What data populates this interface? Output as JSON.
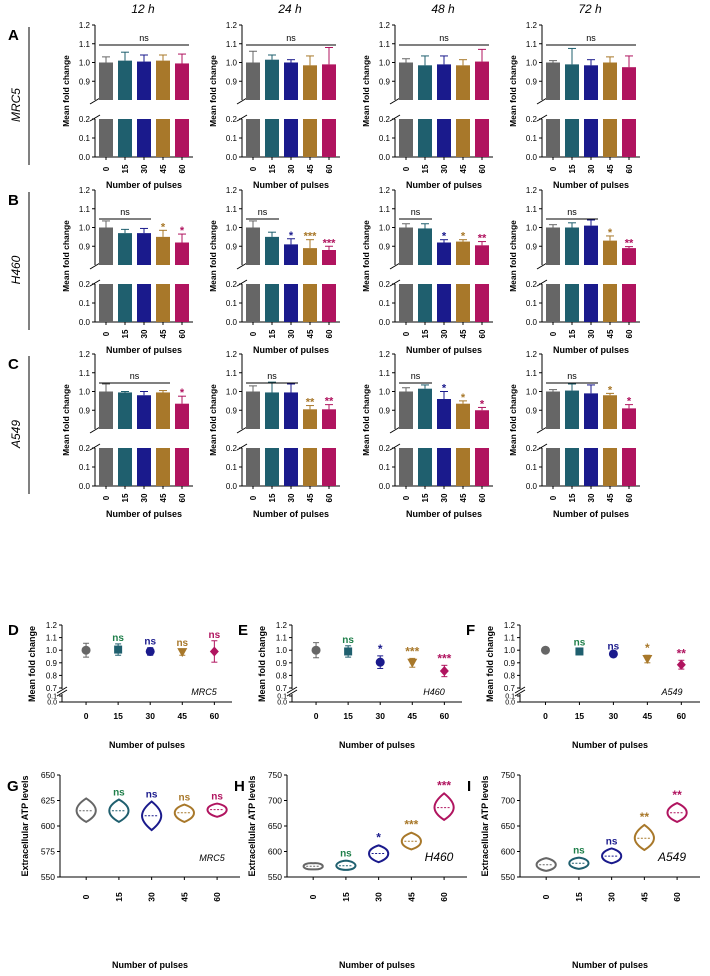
{
  "colors": {
    "p0": "#666666",
    "p15": "#1f5f6e",
    "p30": "#1a1a8c",
    "p45": "#a8782a",
    "p60": "#b0145f",
    "green": "#1f7f4a",
    "axis": "#000000"
  },
  "timepoints": [
    "12 h",
    "24 h",
    "48 h",
    "72 h"
  ],
  "panel_letters": [
    "A",
    "B",
    "C",
    "D",
    "E",
    "F",
    "G",
    "H",
    "I"
  ],
  "row_cells": [
    "MRC5",
    "H460",
    "A549"
  ],
  "chart_data": [
    {
      "type": "bar",
      "panel": "A",
      "cell_line": "MRC5",
      "categories": [
        "0",
        "15",
        "30",
        "45",
        "60"
      ],
      "xlabel": "Number of pulses",
      "ylabel": "Mean fold change",
      "ylim_upper": [
        0.8,
        1.2
      ],
      "ylim_lower": [
        0.0,
        0.2
      ],
      "yticks_upper": [
        "0.9",
        "1.0",
        "1.1",
        "1.2"
      ],
      "yticks_lower": [
        "0.0",
        "0.1",
        "0.2"
      ],
      "series": [
        {
          "time": "12 h",
          "values": [
            1.0,
            1.01,
            1.005,
            1.01,
            0.995
          ],
          "errors": [
            0.03,
            0.045,
            0.035,
            0.03,
            0.05
          ],
          "bracket": "ns",
          "bracket_span": [
            0,
            4
          ],
          "stars": [
            "",
            "",
            "",
            "",
            ""
          ]
        },
        {
          "time": "24 h",
          "values": [
            1.0,
            1.015,
            1.0,
            0.985,
            0.99
          ],
          "errors": [
            0.06,
            0.025,
            0.015,
            0.05,
            0.09
          ],
          "bracket": "ns",
          "bracket_span": [
            0,
            4
          ],
          "stars": [
            "",
            "",
            "",
            "",
            ""
          ]
        },
        {
          "time": "48 h",
          "values": [
            1.0,
            0.985,
            0.99,
            0.985,
            1.005
          ],
          "errors": [
            0.02,
            0.05,
            0.045,
            0.03,
            0.065
          ],
          "bracket": "ns",
          "bracket_span": [
            0,
            4
          ],
          "stars": [
            "",
            "",
            "",
            "",
            ""
          ]
        },
        {
          "time": "72 h",
          "values": [
            1.0,
            0.99,
            0.985,
            1.0,
            0.975
          ],
          "errors": [
            0.01,
            0.085,
            0.03,
            0.03,
            0.06
          ],
          "bracket": "ns",
          "bracket_span": [
            0,
            4
          ],
          "stars": [
            "",
            "",
            "",
            "",
            ""
          ]
        }
      ]
    },
    {
      "type": "bar",
      "panel": "B",
      "cell_line": "H460",
      "categories": [
        "0",
        "15",
        "30",
        "45",
        "60"
      ],
      "xlabel": "Number of pulses",
      "ylabel": "Mean fold change",
      "ylim_upper": [
        0.8,
        1.2
      ],
      "ylim_lower": [
        0.0,
        0.2
      ],
      "yticks_upper": [
        "0.9",
        "1.0",
        "1.1",
        "1.2"
      ],
      "yticks_lower": [
        "0.0",
        "0.1",
        "0.2"
      ],
      "series": [
        {
          "time": "12 h",
          "values": [
            1.0,
            0.97,
            0.97,
            0.95,
            0.92
          ],
          "errors": [
            0.035,
            0.02,
            0.025,
            0.035,
            0.045
          ],
          "bracket": "ns",
          "bracket_span": [
            0,
            2
          ],
          "stars": [
            "",
            "",
            "",
            "*",
            "*"
          ]
        },
        {
          "time": "24 h",
          "values": [
            1.0,
            0.95,
            0.91,
            0.89,
            0.88
          ],
          "errors": [
            0.035,
            0.025,
            0.03,
            0.045,
            0.02
          ],
          "bracket": "ns",
          "bracket_span": [
            0,
            1
          ],
          "stars": [
            "",
            "",
            "*",
            "***",
            "***"
          ]
        },
        {
          "time": "48 h",
          "values": [
            1.0,
            0.995,
            0.92,
            0.925,
            0.905
          ],
          "errors": [
            0.02,
            0.025,
            0.015,
            0.01,
            0.02
          ],
          "bracket": "ns",
          "bracket_span": [
            0,
            1
          ],
          "stars": [
            "",
            "",
            "*",
            "*",
            "**"
          ]
        },
        {
          "time": "72 h",
          "values": [
            1.0,
            1.0,
            1.01,
            0.93,
            0.89
          ],
          "errors": [
            0.015,
            0.025,
            0.03,
            0.025,
            0.008
          ],
          "bracket": "ns",
          "bracket_span": [
            0,
            2
          ],
          "stars": [
            "",
            "",
            "",
            "*",
            "**"
          ]
        }
      ]
    },
    {
      "type": "bar",
      "panel": "C",
      "cell_line": "A549",
      "categories": [
        "0",
        "15",
        "30",
        "45",
        "60"
      ],
      "xlabel": "Number of pulses",
      "ylabel": "Mean fold change",
      "ylim_upper": [
        0.8,
        1.2
      ],
      "ylim_lower": [
        0.0,
        0.2
      ],
      "yticks_upper": [
        "0.9",
        "1.0",
        "1.1",
        "1.2"
      ],
      "yticks_lower": [
        "0.0",
        "0.1",
        "0.2"
      ],
      "series": [
        {
          "time": "12 h",
          "values": [
            1.0,
            0.995,
            0.98,
            0.995,
            0.935
          ],
          "errors": [
            0.04,
            0.005,
            0.02,
            0.01,
            0.04
          ],
          "bracket": "ns",
          "bracket_span": [
            0,
            3
          ],
          "stars": [
            "",
            "",
            "",
            "",
            "*"
          ]
        },
        {
          "time": "24 h",
          "values": [
            1.0,
            0.995,
            0.995,
            0.905,
            0.905
          ],
          "errors": [
            0.03,
            0.055,
            0.045,
            0.02,
            0.025
          ],
          "bracket": "ns",
          "bracket_span": [
            0,
            2
          ],
          "stars": [
            "",
            "",
            "",
            "**",
            "**"
          ]
        },
        {
          "time": "48 h",
          "values": [
            1.0,
            1.015,
            0.96,
            0.935,
            0.9
          ],
          "errors": [
            0.02,
            0.02,
            0.04,
            0.015,
            0.015
          ],
          "bracket": "ns",
          "bracket_span": [
            0,
            1
          ],
          "stars": [
            "",
            "",
            "*",
            "*",
            "*"
          ]
        },
        {
          "time": "72 h",
          "values": [
            1.0,
            1.005,
            0.99,
            0.98,
            0.91
          ],
          "errors": [
            0.01,
            0.035,
            0.045,
            0.01,
            0.02
          ],
          "bracket": "ns",
          "bracket_span": [
            0,
            2
          ],
          "stars": [
            "",
            "",
            "",
            "*",
            "*"
          ]
        }
      ]
    },
    {
      "type": "scatter",
      "panel": "D",
      "cell_line": "MRC5",
      "categories": [
        "0",
        "15",
        "30",
        "45",
        "60"
      ],
      "xlabel": "Number of pulses",
      "ylabel": "Mean fold change",
      "ylim_upper": [
        0.7,
        1.2
      ],
      "ylim_lower": [
        0.0,
        0.1
      ],
      "yticks_upper": [
        "0.7",
        "0.8",
        "0.9",
        "1.0",
        "1.1",
        "1.2"
      ],
      "yticks_lower": [
        "0.0",
        "0.1"
      ],
      "markers": [
        "circle",
        "square",
        "circle",
        "triangle-down",
        "diamond"
      ],
      "values": [
        1.0,
        1.005,
        0.99,
        0.985,
        0.99
      ],
      "errors": [
        0.055,
        0.045,
        0.03,
        0.025,
        0.085
      ],
      "labels": [
        "",
        "ns",
        "ns",
        "ns",
        "ns"
      ]
    },
    {
      "type": "scatter",
      "panel": "E",
      "cell_line": "H460",
      "categories": [
        "0",
        "15",
        "30",
        "45",
        "60"
      ],
      "xlabel": "Number of pulses",
      "ylabel": "Mean fold change",
      "ylim_upper": [
        0.7,
        1.2
      ],
      "ylim_lower": [
        0.0,
        0.1
      ],
      "yticks_upper": [
        "0.7",
        "0.8",
        "0.9",
        "1.0",
        "1.1",
        "1.2"
      ],
      "yticks_lower": [
        "0.0",
        "0.1"
      ],
      "markers": [
        "circle",
        "square",
        "circle",
        "triangle-down",
        "diamond"
      ],
      "values": [
        1.0,
        0.99,
        0.905,
        0.9,
        0.835
      ],
      "errors": [
        0.06,
        0.045,
        0.05,
        0.035,
        0.045
      ],
      "labels": [
        "",
        "ns",
        "*",
        "***",
        "***"
      ]
    },
    {
      "type": "scatter",
      "panel": "F",
      "cell_line": "A549",
      "categories": [
        "0",
        "15",
        "30",
        "45",
        "60"
      ],
      "xlabel": "Number of pulses",
      "ylabel": "Mean fold change",
      "ylim_upper": [
        0.7,
        1.2
      ],
      "ylim_lower": [
        0.0,
        0.1
      ],
      "yticks_upper": [
        "0.7",
        "0.8",
        "0.9",
        "1.0",
        "1.1",
        "1.2"
      ],
      "yticks_lower": [
        "0.0",
        "0.1"
      ],
      "markers": [
        "circle",
        "square",
        "circle",
        "triangle-down",
        "diamond"
      ],
      "values": [
        1.0,
        0.99,
        0.97,
        0.93,
        0.885
      ],
      "errors": [
        0.02,
        0.025,
        0.01,
        0.03,
        0.035
      ],
      "labels": [
        "",
        "ns",
        "ns",
        "*",
        "**"
      ]
    },
    {
      "type": "violin",
      "panel": "G",
      "cell_line": "MRC5",
      "categories": [
        "0",
        "15",
        "30",
        "45",
        "60"
      ],
      "xlabel": "Number of pulses",
      "ylabel": "Extracellular ATP levels",
      "ylim": [
        550,
        650
      ],
      "yticks": [
        "550",
        "575",
        "600",
        "625",
        "650"
      ],
      "medians": [
        615,
        615,
        610,
        613,
        616
      ],
      "ranges": [
        [
          604,
          627
        ],
        [
          604,
          626
        ],
        [
          596,
          624
        ],
        [
          604,
          621
        ],
        [
          609,
          622
        ]
      ],
      "labels": [
        "",
        "ns",
        "ns",
        "ns",
        "ns"
      ]
    },
    {
      "type": "violin",
      "panel": "H",
      "cell_line": "H460",
      "categories": [
        "0",
        "15",
        "30",
        "45",
        "60"
      ],
      "xlabel": "Number of pulses",
      "ylabel": "Extracellular ATP levels",
      "ylim": [
        550,
        750
      ],
      "yticks": [
        "550",
        "600",
        "650",
        "700",
        "750"
      ],
      "medians": [
        571,
        572,
        596,
        620,
        686
      ],
      "ranges": [
        [
          565,
          577
        ],
        [
          564,
          582
        ],
        [
          579,
          612
        ],
        [
          604,
          637
        ],
        [
          662,
          714
        ]
      ],
      "labels": [
        "",
        "ns",
        "*",
        "***",
        "***"
      ]
    },
    {
      "type": "violin",
      "panel": "I",
      "cell_line": "A549",
      "categories": [
        "0",
        "15",
        "30",
        "45",
        "60"
      ],
      "xlabel": "Number of pulses",
      "ylabel": "Extracellular ATP levels",
      "ylim": [
        550,
        750
      ],
      "yticks": [
        "550",
        "600",
        "650",
        "700",
        "750"
      ],
      "medians": [
        574,
        577,
        591,
        626,
        676
      ],
      "ranges": [
        [
          562,
          587
        ],
        [
          566,
          588
        ],
        [
          577,
          606
        ],
        [
          603,
          652
        ],
        [
          658,
          695
        ]
      ],
      "labels": [
        "",
        "ns",
        "ns",
        "**",
        "**"
      ]
    }
  ]
}
